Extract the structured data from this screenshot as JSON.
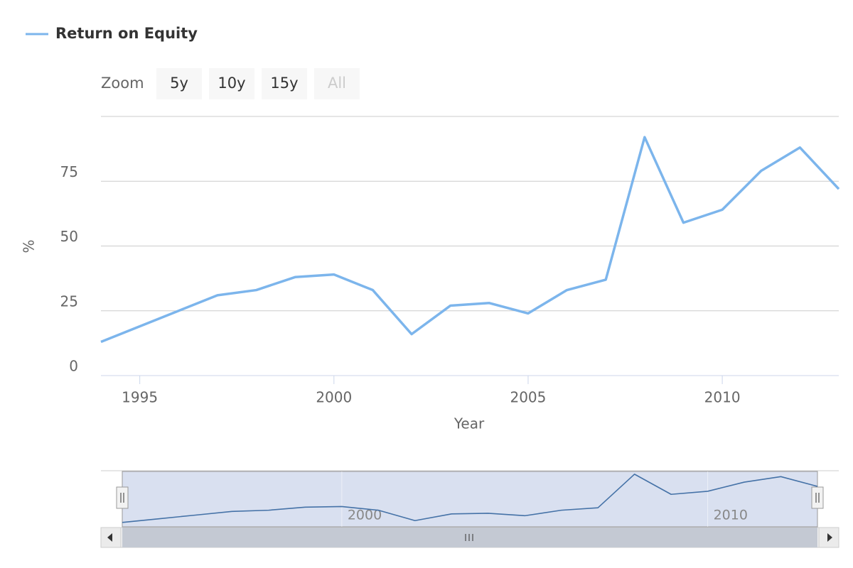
{
  "chart_data": {
    "type": "line",
    "x_label": "Year",
    "y_label": "%",
    "x": [
      1994,
      1995,
      1996,
      1997,
      1998,
      1999,
      2000,
      2001,
      2002,
      2003,
      2004,
      2005,
      2006,
      2007,
      2008,
      2009,
      2010,
      2011,
      2012,
      2013
    ],
    "series": [
      {
        "name": "Return on Equity",
        "color": "#7cb5ec",
        "values": [
          13,
          19,
          25,
          31,
          33,
          38,
          39,
          33,
          16,
          27,
          28,
          24,
          33,
          37,
          92,
          59,
          64,
          79,
          88,
          72
        ]
      }
    ],
    "xlim": [
      1994,
      2013
    ],
    "xticks": [
      1995,
      2000,
      2005,
      2010
    ],
    "ylim": [
      0,
      100
    ],
    "yticks": [
      0,
      25,
      50,
      75
    ],
    "grid": true,
    "legend": "top-left",
    "range_selector": {
      "label": "Zoom",
      "buttons": [
        "5y",
        "10y",
        "15y",
        "All"
      ]
    },
    "navigator": {
      "xticks": [
        2000,
        2010
      ]
    }
  }
}
